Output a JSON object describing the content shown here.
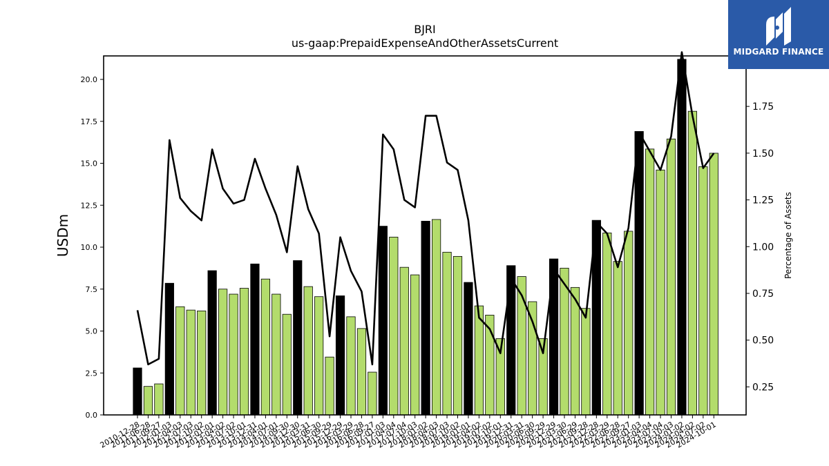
{
  "brand": {
    "name": "MIDGARD FINANCE",
    "background": "#2a5aa8",
    "icon": "midgard-m-logo-icon"
  },
  "chart_data": {
    "type": "bar",
    "title": "BJRI",
    "subtitle": "us-gaap:PrepaidExpenseAndOtherAssetsCurrent",
    "ylabel": "USDm",
    "y2label": "Percentage of Assets",
    "ylim": [
      0,
      21.4
    ],
    "y2lim": [
      0.1,
      2.02
    ],
    "yticks": [
      0.0,
      2.5,
      5.0,
      7.5,
      10.0,
      12.5,
      15.0,
      17.5,
      20.0
    ],
    "y2ticks": [
      0.25,
      0.5,
      0.75,
      1.0,
      1.25,
      1.5,
      1.75
    ],
    "colors": {
      "annual_bar": "#000000",
      "quarter_bar": "#b3dc6c",
      "line": "#000000"
    },
    "categories": [
      "2010-12-28",
      "2011-06-28",
      "2011-09-27",
      "2012-01-03",
      "2012-04-03",
      "2012-07-03",
      "2012-10-02",
      "2013-01-01",
      "2013-04-02",
      "2013-07-02",
      "2013-10-01",
      "2013-12-31",
      "2014-04-01",
      "2014-07-01",
      "2014-09-30",
      "2014-12-30",
      "2015-03-31",
      "2015-06-30",
      "2015-09-29",
      "2015-12-29",
      "2016-03-29",
      "2016-06-28",
      "2016-09-27",
      "2017-01-03",
      "2017-04-04",
      "2017-07-04",
      "2017-10-03",
      "2018-01-02",
      "2018-04-03",
      "2018-07-03",
      "2018-10-02",
      "2019-01-01",
      "2019-04-02",
      "2019-07-02",
      "2019-10-01",
      "2019-12-31",
      "2020-03-31",
      "2020-06-30",
      "2020-09-29",
      "2020-12-29",
      "2021-03-30",
      "2021-06-29",
      "2021-09-28",
      "2021-12-28",
      "2022-03-29",
      "2022-06-28",
      "2022-09-27",
      "2023-01-03",
      "2023-04-04",
      "2023-07-04",
      "2023-10-03",
      "2024-01-02",
      "2024-04-02",
      "2024-07-02",
      "2024-10-01"
    ],
    "tick_labels": [
      "2010-12-28",
      "2011-06-28",
      "2011-09-27",
      "2012-01-03",
      "2012-04-03",
      "2012-07-03",
      "2012-10-02",
      "2013-01-01",
      "2013-04-02",
      "2013-07-02",
      "2013-10-01",
      "2013-12-31",
      "2014-04-01",
      "2014-07-01",
      "2014-09-30",
      "2014-12-30",
      "2015-03-31",
      "2015-06-30",
      "2015-09-29",
      "2015-12-29",
      "2016-03-29",
      "2016-06-28",
      "2016-09-27",
      "2017-01-03",
      "2017-04-04",
      "2017-07-04",
      "2017-10-03",
      "2018-01-02",
      "2018-04-03",
      "2018-07-03",
      "2018-10-02",
      "2019-01-01",
      "2019-04-02",
      "2019-07-02",
      "2019-10-01",
      "2019-12-31",
      "2020-03-31",
      "2020-06-30",
      "2020-09-29",
      "2020-12-29",
      "2021-03-30",
      "2021-06-29",
      "2021-09-28",
      "2021-12-28",
      "2022-03-29",
      "2022-06-28",
      "2022-09-27",
      "2023-01-03",
      "2023-04-04",
      "2023-07-04",
      "2023-10-03",
      "2024-01-02",
      "2024-04-02",
      "2024-07-02",
      "2024-10-01"
    ],
    "annual": [
      true,
      false,
      false,
      true,
      false,
      false,
      false,
      true,
      false,
      false,
      false,
      true,
      false,
      false,
      false,
      true,
      false,
      false,
      false,
      true,
      false,
      false,
      false,
      true,
      false,
      false,
      false,
      true,
      false,
      false,
      false,
      true,
      false,
      false,
      false,
      true,
      false,
      false,
      false,
      true,
      false,
      false,
      false,
      true,
      false,
      false,
      false,
      true,
      false,
      false,
      false,
      true,
      false,
      false,
      false
    ],
    "series": [
      {
        "values": [
          2.8,
          1.7,
          1.85,
          7.85,
          6.45,
          6.25,
          6.2,
          8.6,
          7.5,
          7.2,
          7.55,
          9.0,
          8.1,
          7.2,
          6.0,
          9.2,
          7.65,
          7.05,
          3.45,
          7.1,
          5.85,
          5.15,
          2.55,
          11.25,
          10.6,
          8.8,
          8.35,
          11.55,
          11.65,
          9.7,
          9.45,
          7.9,
          6.5,
          5.95,
          4.55,
          8.9,
          8.25,
          6.75,
          4.55,
          9.3,
          8.75,
          7.6,
          6.35,
          11.6,
          10.85,
          9.15,
          10.95,
          16.9,
          15.85,
          14.6,
          16.45,
          21.2,
          18.1,
          14.8,
          15.6
        ]
      },
      {
        "axis": "right",
        "values": [
          0.66,
          0.37,
          0.4,
          1.57,
          1.26,
          1.19,
          1.14,
          1.52,
          1.31,
          1.23,
          1.25,
          1.47,
          1.31,
          1.17,
          0.97,
          1.43,
          1.2,
          1.07,
          0.52,
          1.05,
          0.87,
          0.76,
          0.37,
          1.6,
          1.52,
          1.25,
          1.21,
          1.7,
          1.7,
          1.45,
          1.41,
          1.14,
          0.62,
          0.56,
          0.43,
          0.83,
          0.74,
          0.6,
          0.43,
          0.88,
          0.8,
          0.72,
          0.62,
          1.13,
          1.07,
          0.89,
          1.1,
          1.61,
          1.51,
          1.41,
          1.59,
          2.04,
          1.7,
          1.42,
          1.5
        ]
      }
    ]
  }
}
